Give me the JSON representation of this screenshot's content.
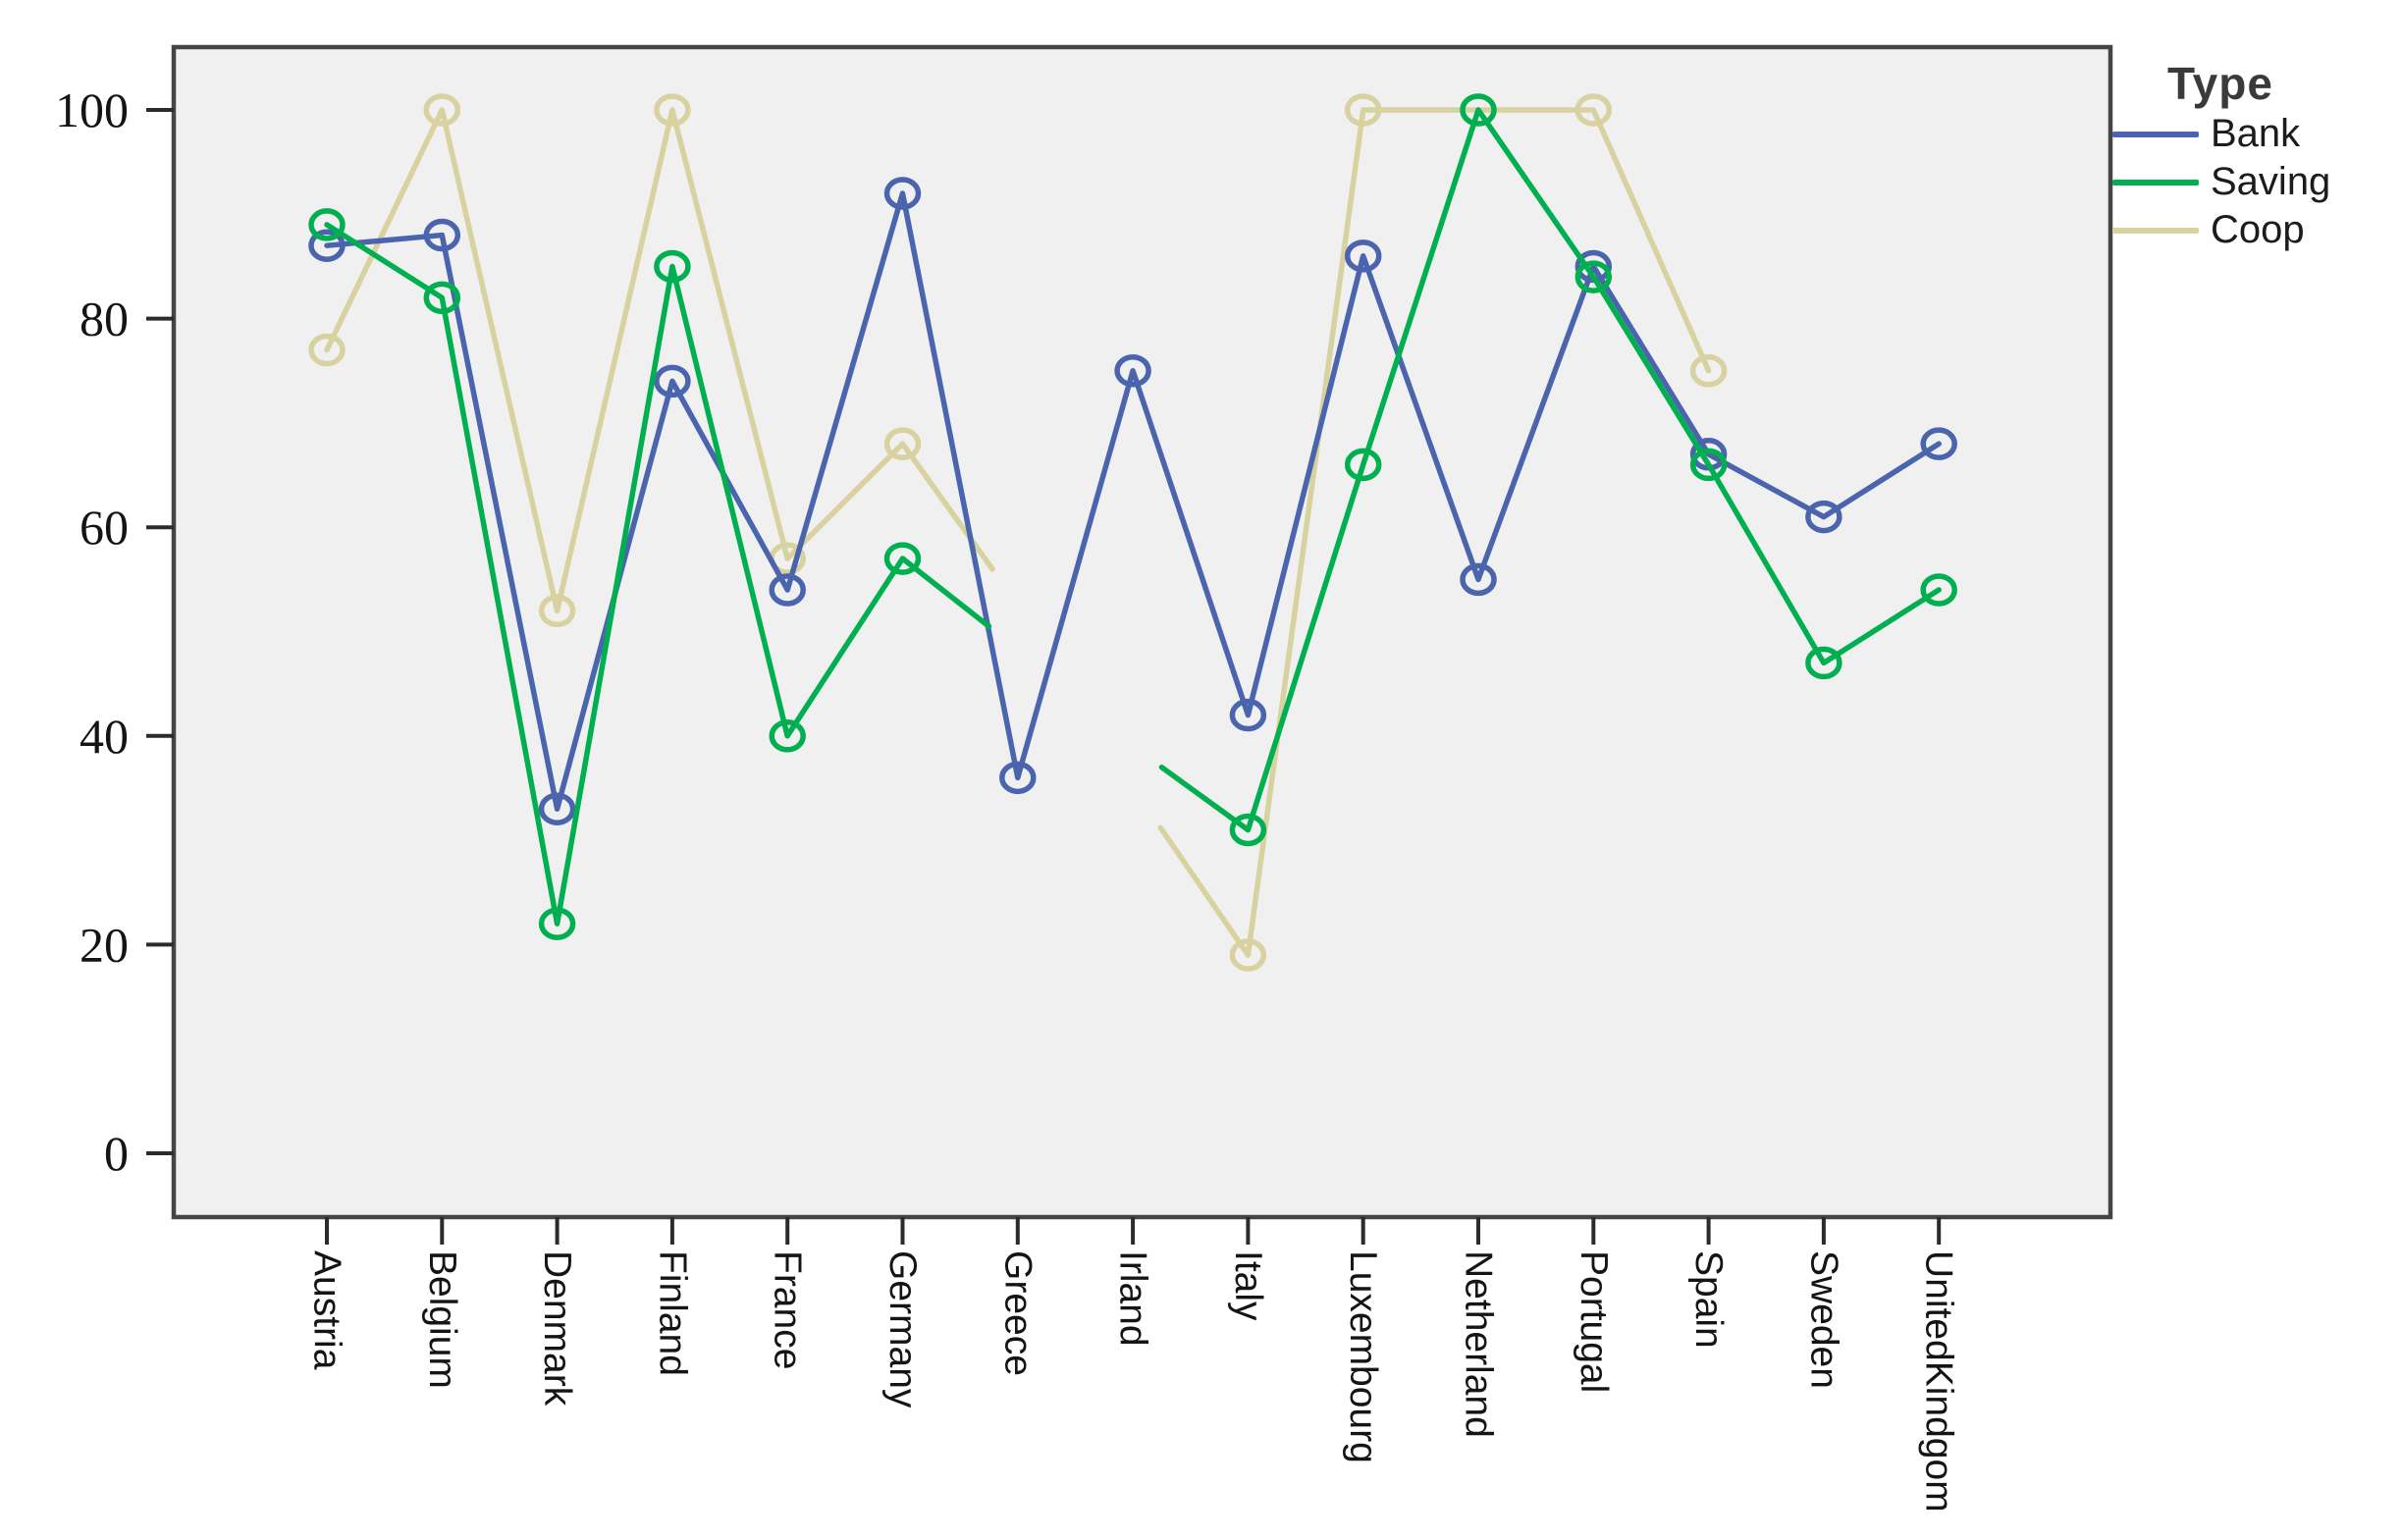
{
  "legend": {
    "title": "Type",
    "entries": [
      {
        "label": "Bank",
        "color": "#4a64ad"
      },
      {
        "label": "Saving",
        "color": "#00b050"
      },
      {
        "label": "Coop",
        "color": "#d8d1a0"
      }
    ]
  },
  "y_axis": {
    "tick_labels": [
      "0",
      "20",
      "40",
      "60",
      "80",
      "100"
    ]
  },
  "chart_data": {
    "type": "line",
    "title": "",
    "xlabel": "",
    "ylabel": "",
    "ylim": [
      0,
      100
    ],
    "y_ticks": [
      0,
      20,
      40,
      60,
      80,
      100
    ],
    "grid": false,
    "legend_position": "right",
    "legend_title": "Type",
    "marker": "open-circle",
    "plot_bg": "#f0f0f0",
    "border_color": "#454545",
    "tick_color": "#2b2b2b",
    "label_color": "#141414",
    "categories": [
      "Austria",
      "Belgium",
      "Denmark",
      "Finland",
      "France",
      "Germany",
      "Greece",
      "Irland",
      "Italy",
      "Luxembourg",
      "Netherland",
      "Portugal",
      "Spain",
      "Sweden",
      "UnitedKindgom"
    ],
    "series": [
      {
        "name": "Bank",
        "color": "#4a64ad",
        "values": [
          87,
          88,
          33,
          74,
          54,
          92,
          36,
          75,
          42,
          86,
          55,
          85,
          67,
          61,
          68
        ]
      },
      {
        "name": "Saving",
        "color": "#00b050",
        "values": [
          89,
          82,
          22,
          85,
          40,
          57,
          null,
          null,
          31,
          66,
          100,
          84,
          66,
          47,
          54
        ]
      },
      {
        "name": "Coop",
        "color": "#d8d1a0",
        "values": [
          77,
          100,
          52,
          100,
          57,
          68,
          null,
          null,
          19,
          100,
          100,
          100,
          75,
          null,
          null
        ]
      }
    ],
    "partial_segments": [
      {
        "series": "Saving",
        "from": {
          "i": 5,
          "v": 57
        },
        "to": {
          "i": 5.75,
          "v": 50.5
        }
      },
      {
        "series": "Saving",
        "from": {
          "i": 7.25,
          "v": 37
        },
        "to": {
          "i": 8,
          "v": 31
        }
      },
      {
        "series": "Coop",
        "from": {
          "i": 5,
          "v": 68
        },
        "to": {
          "i": 5.78,
          "v": 56
        }
      },
      {
        "series": "Coop",
        "from": {
          "i": 7.24,
          "v": 31.2
        },
        "to": {
          "i": 8,
          "v": 19
        }
      }
    ]
  }
}
